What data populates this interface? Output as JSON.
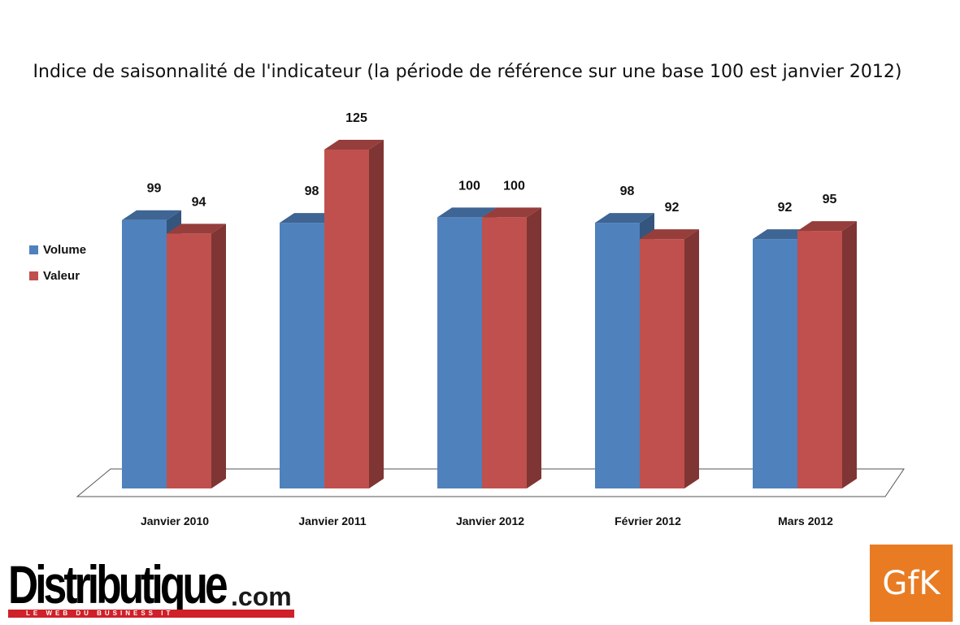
{
  "chart_data": {
    "type": "bar",
    "title": "Indice de saisonnalité de l'indicateur (la période de référence sur une base 100 est janvier 2012)",
    "categories": [
      "Janvier 2010",
      "Janvier 2011",
      "Janvier 2012",
      "Février 2012",
      "Mars 2012"
    ],
    "series": [
      {
        "name": "Volume",
        "values": [
          99,
          98,
          100,
          98,
          92
        ],
        "color": "#4f81bd"
      },
      {
        "name": "Valeur",
        "values": [
          94,
          125,
          100,
          92,
          95
        ],
        "color": "#c0504d"
      }
    ],
    "ylim": [
      0,
      125
    ],
    "grid": false,
    "legend_position": "left",
    "style": "3d-clustered-column"
  },
  "logos": {
    "distributique_name": "Distributique",
    "distributique_domain": ".com",
    "distributique_tagline": "LE WEB DU BUSINESS IT",
    "gfk": "GfK"
  }
}
